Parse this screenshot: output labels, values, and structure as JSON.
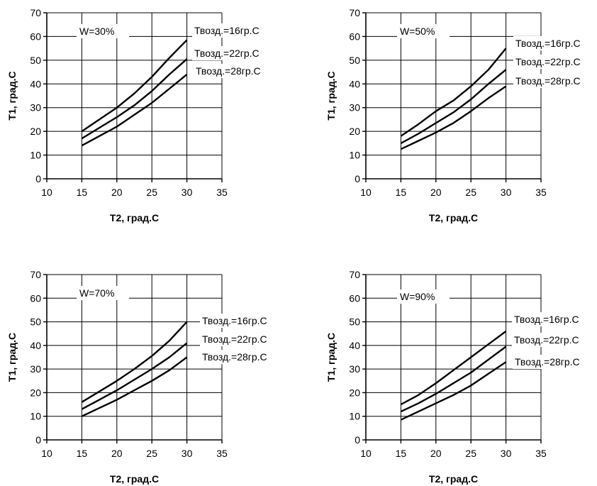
{
  "chart_data": [
    {
      "type": "line",
      "title": "",
      "inset_label": "W=30%",
      "xlabel": "T2, град.С",
      "ylabel": "T1, град.С",
      "xlim": [
        10,
        35
      ],
      "ylim": [
        0,
        70
      ],
      "xticks": [
        10,
        15,
        20,
        25,
        30,
        35
      ],
      "yticks": [
        0,
        10,
        20,
        30,
        40,
        50,
        60,
        70
      ],
      "grid": true,
      "series": [
        {
          "name": "Твозд.=16гр.С",
          "x": [
            15,
            17.5,
            20,
            22.5,
            25,
            27.5,
            30
          ],
          "y": [
            20,
            25,
            30,
            36,
            43,
            51,
            58.5
          ]
        },
        {
          "name": "Твозд.=22гр.С",
          "x": [
            15,
            17.5,
            20,
            22.5,
            25,
            27.5,
            30
          ],
          "y": [
            17,
            21.5,
            26,
            31,
            37,
            44,
            50.5
          ]
        },
        {
          "name": "Твозд.=28гр.С",
          "x": [
            15,
            17.5,
            20,
            22.5,
            25,
            27.5,
            30
          ],
          "y": [
            14,
            18,
            22,
            27,
            32,
            38,
            44
          ]
        }
      ]
    },
    {
      "type": "line",
      "title": "",
      "inset_label": "W=50%",
      "xlabel": "T2, град.С",
      "ylabel": "T1, град.С",
      "xlim": [
        10,
        35
      ],
      "ylim": [
        0,
        70
      ],
      "xticks": [
        10,
        15,
        20,
        25,
        30,
        35
      ],
      "yticks": [
        0,
        10,
        20,
        30,
        40,
        50,
        60,
        70
      ],
      "grid": true,
      "series": [
        {
          "name": "Твозд.=16гр.С",
          "x": [
            15,
            17.5,
            20,
            22.5,
            25,
            27.5,
            30
          ],
          "y": [
            18,
            23,
            28.5,
            33,
            39,
            46,
            55
          ]
        },
        {
          "name": "Твозд.=22гр.С",
          "x": [
            15,
            17.5,
            20,
            22.5,
            25,
            27.5,
            30
          ],
          "y": [
            15,
            19,
            23.5,
            28,
            33.5,
            40,
            46
          ]
        },
        {
          "name": "Твозд.=28гр.С",
          "x": [
            15,
            17.5,
            20,
            22.5,
            25,
            27.5,
            30
          ],
          "y": [
            12.5,
            16,
            19.5,
            23.5,
            28.5,
            34,
            39
          ]
        }
      ]
    },
    {
      "type": "line",
      "title": "",
      "inset_label": "W=70%",
      "xlabel": "T2, град.С",
      "ylabel": "T1, град.С",
      "xlim": [
        10,
        35
      ],
      "ylim": [
        0,
        70
      ],
      "xticks": [
        10,
        15,
        20,
        25,
        30,
        35
      ],
      "yticks": [
        0,
        10,
        20,
        30,
        40,
        50,
        60,
        70
      ],
      "grid": true,
      "series": [
        {
          "name": "Твозд.=16гр.С",
          "x": [
            15,
            17.5,
            20,
            22.5,
            25,
            27.5,
            30
          ],
          "y": [
            16,
            20.5,
            25,
            30,
            35.5,
            42,
            50
          ]
        },
        {
          "name": "Твозд.=22гр.С",
          "x": [
            15,
            17.5,
            20,
            22.5,
            25,
            27.5,
            30
          ],
          "y": [
            13,
            17,
            21,
            25.5,
            30,
            35,
            41
          ]
        },
        {
          "name": "Твозд.=28гр.С",
          "x": [
            15,
            17.5,
            20,
            22.5,
            25,
            27.5,
            30
          ],
          "y": [
            10,
            13.5,
            17,
            21,
            25,
            29.5,
            35
          ]
        }
      ]
    },
    {
      "type": "line",
      "title": "",
      "inset_label": "W=90%",
      "xlabel": "T2, град.С",
      "ylabel": "T1, град.С",
      "xlim": [
        10,
        35
      ],
      "ylim": [
        0,
        70
      ],
      "xticks": [
        10,
        15,
        20,
        25,
        30,
        35
      ],
      "yticks": [
        0,
        10,
        20,
        30,
        40,
        50,
        60,
        70
      ],
      "grid": true,
      "series": [
        {
          "name": "Твозд.=16гр.С",
          "x": [
            15,
            17.5,
            20,
            22.5,
            25,
            27.5,
            30
          ],
          "y": [
            15,
            19,
            24,
            29.5,
            35,
            40.5,
            46
          ]
        },
        {
          "name": "Твозд.=22гр.С",
          "x": [
            15,
            17.5,
            20,
            22.5,
            25,
            27.5,
            30
          ],
          "y": [
            12,
            15.5,
            19.5,
            24,
            28.5,
            34,
            39.5
          ]
        },
        {
          "name": "Твозд.=28гр.С",
          "x": [
            15,
            17.5,
            20,
            22.5,
            25,
            27.5,
            30
          ],
          "y": [
            8.5,
            12,
            15.5,
            19,
            23,
            28,
            33
          ]
        }
      ]
    }
  ]
}
